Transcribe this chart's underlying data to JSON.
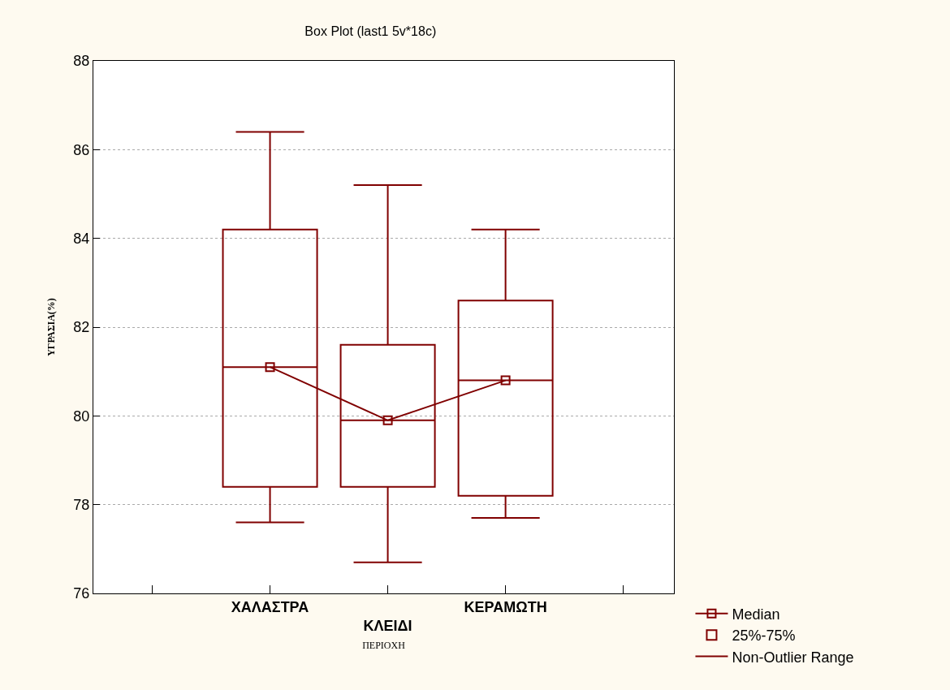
{
  "chart_data": {
    "type": "box",
    "title": "Box Plot (last1 5v*18c)",
    "xlabel": "ΠΕΡΙΟΧΗ",
    "ylabel": "ΥΓΡΑΣΙΑ(%)",
    "categories": [
      "ΧΑΛΑΣΤΡΑ",
      "ΚΛΕΙΔΙ",
      "ΚΕΡΑΜΩΤΗ"
    ],
    "series": [
      {
        "name": "25%-75%",
        "color": "#800000",
        "boxes": [
          {
            "low": 77.6,
            "q1": 78.4,
            "median": 81.1,
            "q3": 84.2,
            "high": 86.4
          },
          {
            "low": 76.7,
            "q1": 78.4,
            "median": 79.9,
            "q3": 81.6,
            "high": 85.2
          },
          {
            "low": 77.7,
            "q1": 78.2,
            "median": 80.8,
            "q3": 82.6,
            "high": 84.2
          }
        ]
      },
      {
        "type": "line",
        "name": "Median",
        "color": "#800000",
        "values": [
          81.1,
          79.9,
          80.8
        ]
      }
    ],
    "annotations": [
      "Non-Outlier Range"
    ],
    "marker": "square",
    "ylim": [
      76,
      88
    ],
    "yticks": [
      76,
      78,
      80,
      82,
      84,
      86,
      88
    ],
    "grid": "y",
    "legend": "bottom right"
  }
}
